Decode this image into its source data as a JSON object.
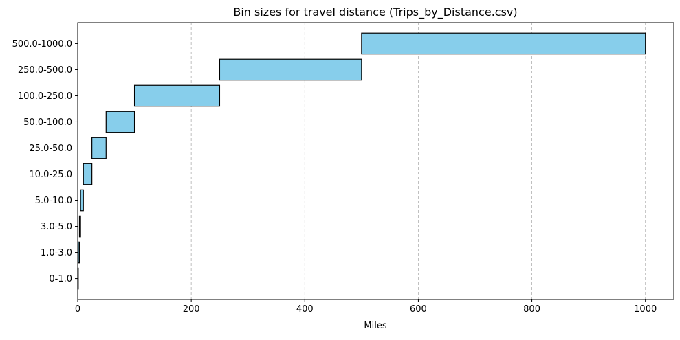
{
  "chart_data": {
    "type": "bar",
    "orientation": "horizontal",
    "title": "Bin sizes for travel distance (Trips_by_Distance.csv)",
    "xlabel": "Miles",
    "ylabel": "",
    "xlim": [
      0,
      1050
    ],
    "x_ticks": [
      0,
      200,
      400,
      600,
      800,
      1000
    ],
    "grid": {
      "x": true,
      "y": false,
      "style": "dashed"
    },
    "bar_color": "#87ceeb",
    "bar_edge_color": "#000000",
    "bins": [
      {
        "label": "0-1.0",
        "start": 0,
        "end": 1.0
      },
      {
        "label": "1.0-3.0",
        "start": 1.0,
        "end": 3.0
      },
      {
        "label": "3.0-5.0",
        "start": 3.0,
        "end": 5.0
      },
      {
        "label": "5.0-10.0",
        "start": 5.0,
        "end": 10.0
      },
      {
        "label": "10.0-25.0",
        "start": 10.0,
        "end": 25.0
      },
      {
        "label": "25.0-50.0",
        "start": 25.0,
        "end": 50.0
      },
      {
        "label": "50.0-100.0",
        "start": 50.0,
        "end": 100.0
      },
      {
        "label": "100.0-250.0",
        "start": 100.0,
        "end": 250.0
      },
      {
        "label": "250.0-500.0",
        "start": 250.0,
        "end": 500.0
      },
      {
        "label": "500.0-1000.0",
        "start": 500.0,
        "end": 1000.0
      }
    ]
  }
}
